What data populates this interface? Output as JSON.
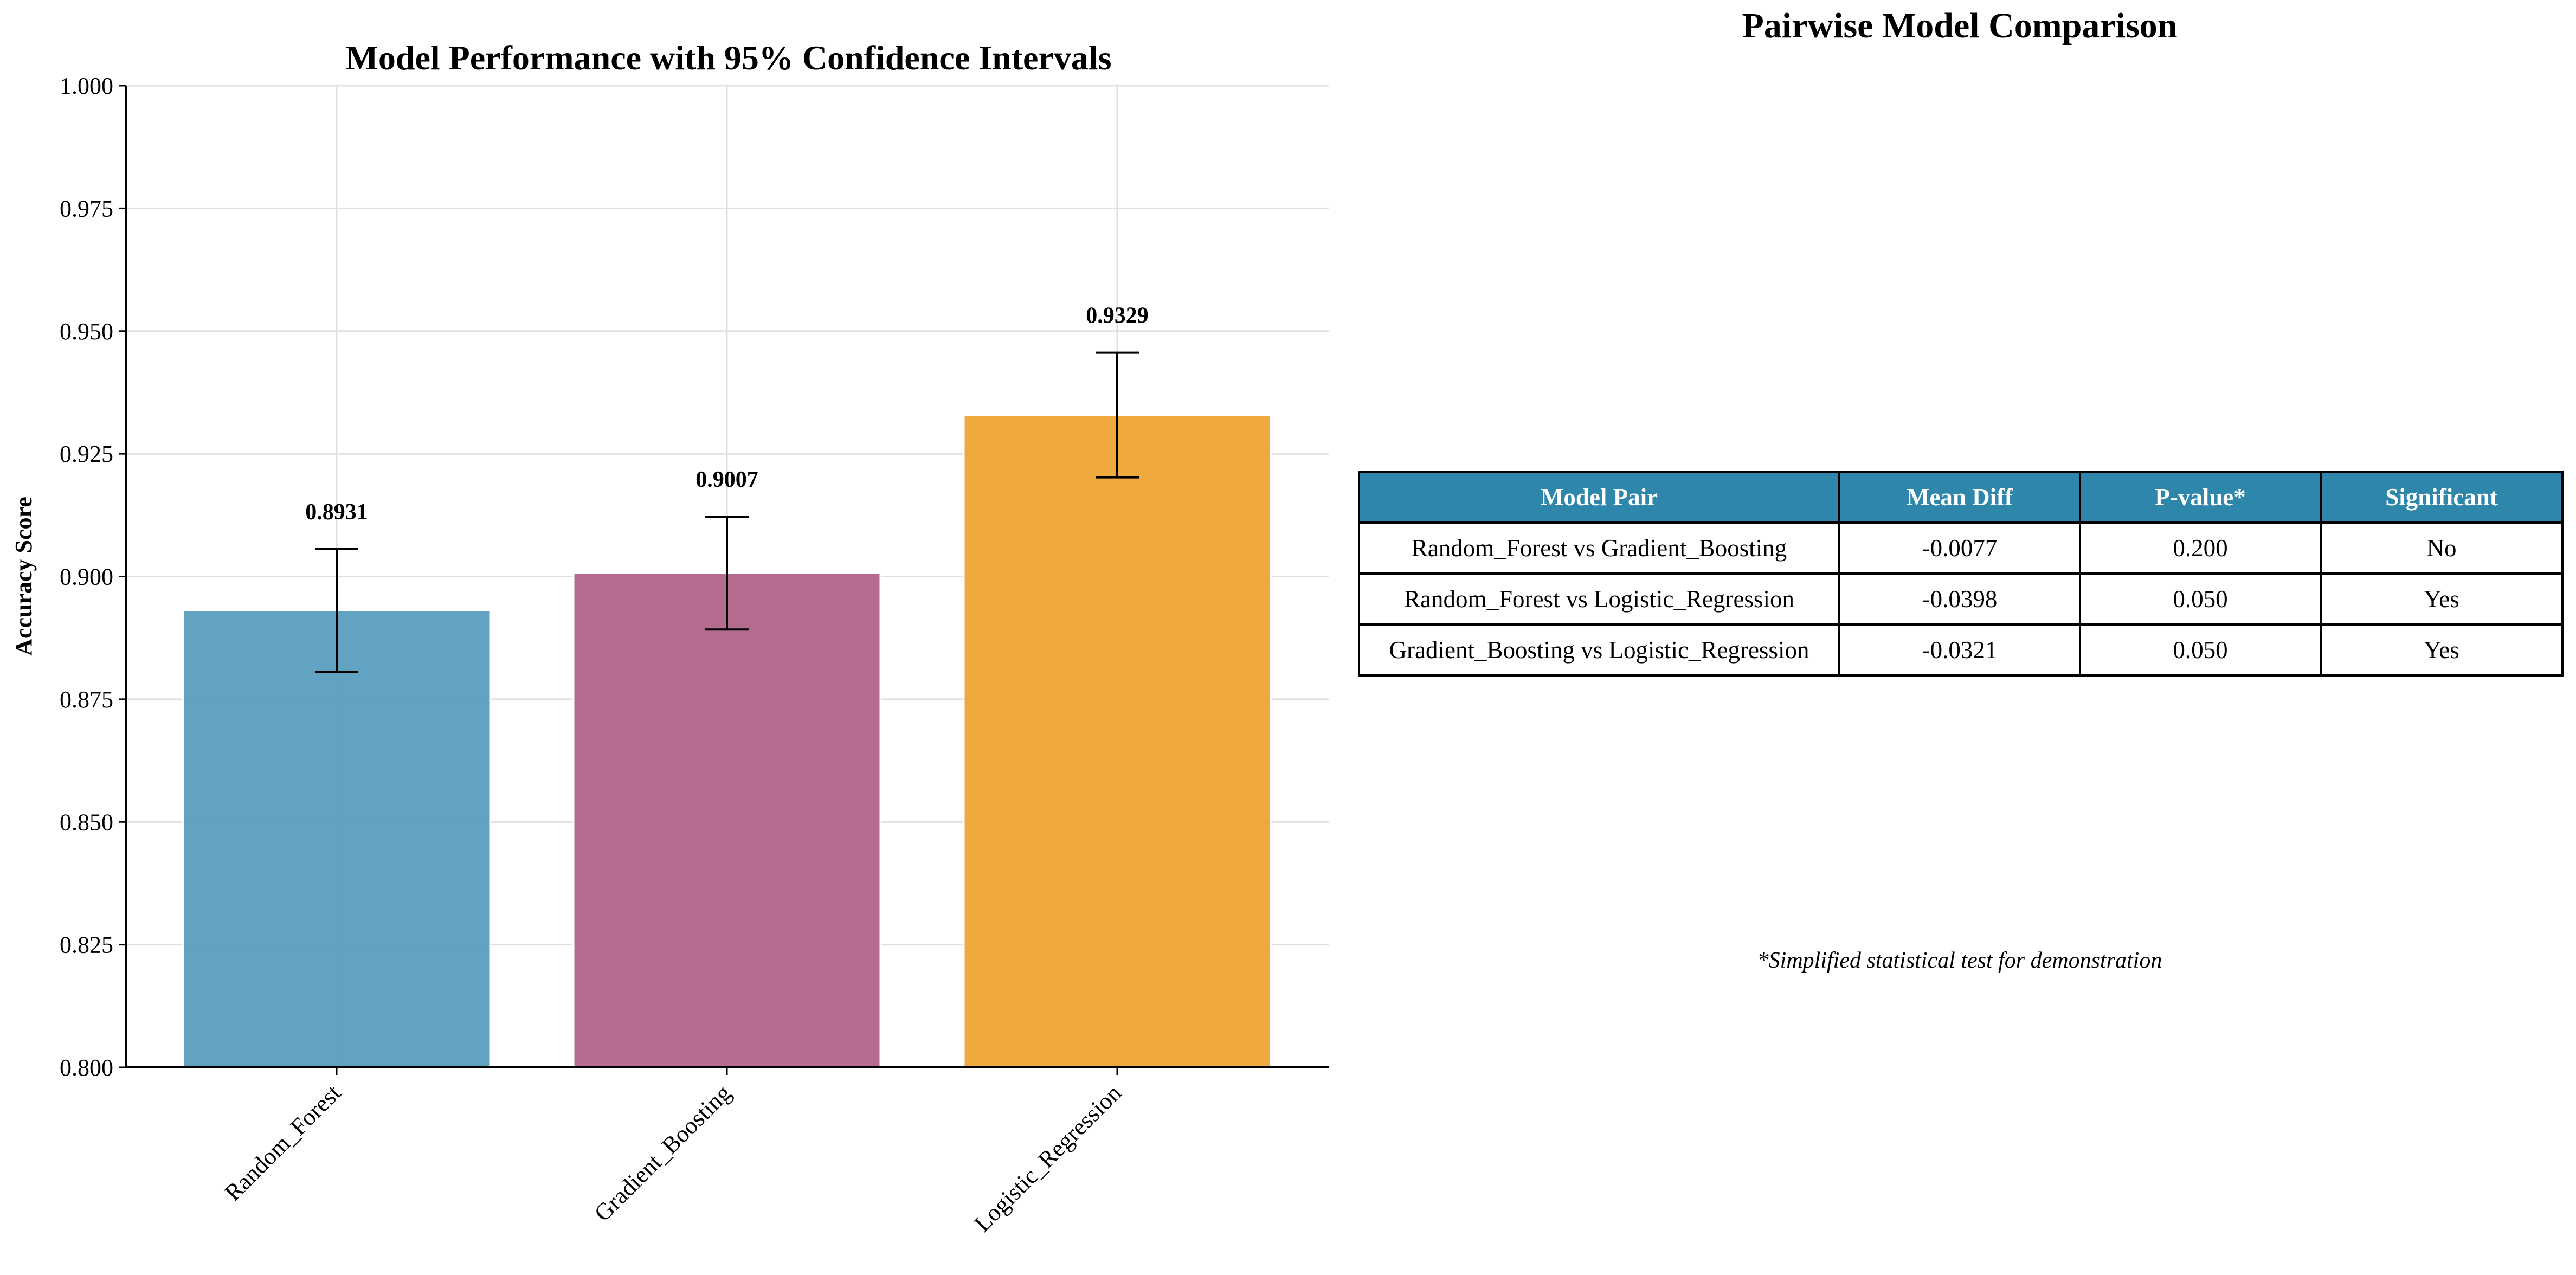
{
  "chart_data": {
    "type": "bar",
    "title": "Model Performance with 95% Confidence Intervals",
    "xlabel": "",
    "ylabel": "Accuracy Score",
    "categories": [
      "Random_Forest",
      "Gradient_Boosting",
      "Logistic_Regression"
    ],
    "values": [
      0.8931,
      0.9007,
      0.9329
    ],
    "value_labels": [
      "0.8931",
      "0.9007",
      "0.9329"
    ],
    "ci_low": [
      0.8806,
      0.8892,
      0.9202
    ],
    "ci_high": [
      0.9056,
      0.9122,
      0.9456
    ],
    "colors": [
      "#5a9fbe",
      "#b1658c",
      "#f0a535"
    ],
    "ylim": [
      0.8,
      1.0
    ],
    "yticks": [
      0.8,
      0.825,
      0.85,
      0.875,
      0.9,
      0.925,
      0.95,
      0.975,
      1.0
    ],
    "ytick_labels": [
      "0.800",
      "0.825",
      "0.850",
      "0.875",
      "0.900",
      "0.925",
      "0.950",
      "0.975",
      "1.000"
    ],
    "grid": true
  },
  "comparison": {
    "title": "Pairwise Model Comparison",
    "header_color": "#2e86ab",
    "headers": [
      "Model Pair",
      "Mean Diff",
      "P-value*",
      "Significant"
    ],
    "rows": [
      [
        "Random_Forest vs Gradient_Boosting",
        "-0.0077",
        "0.200",
        "No"
      ],
      [
        "Random_Forest vs Logistic_Regression",
        "-0.0398",
        "0.050",
        "Yes"
      ],
      [
        "Gradient_Boosting vs Logistic_Regression",
        "-0.0321",
        "0.050",
        "Yes"
      ]
    ],
    "footnote": "*Simplified statistical test for demonstration"
  }
}
